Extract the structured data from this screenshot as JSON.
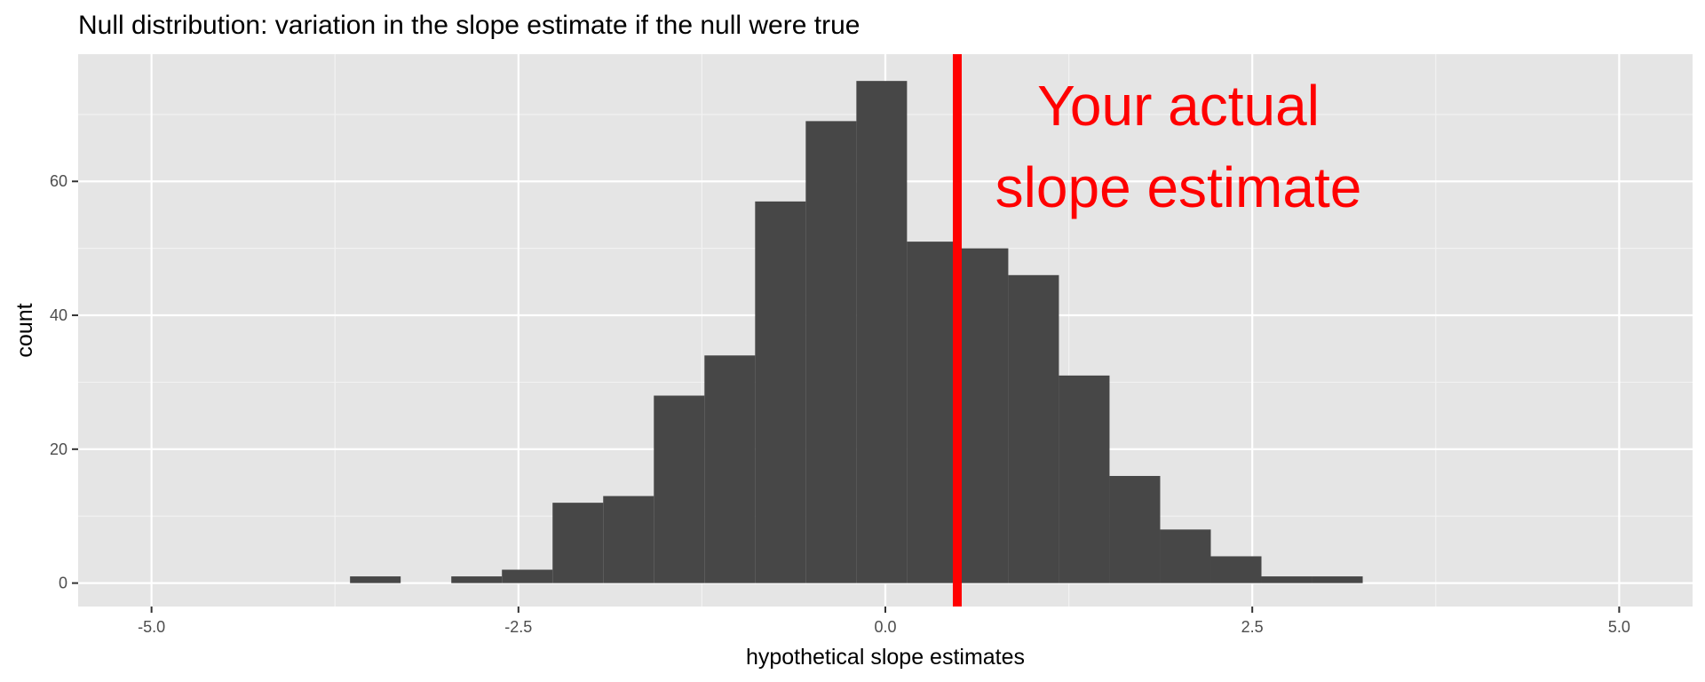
{
  "chart_data": {
    "type": "bar",
    "title": "Null distribution: variation in the slope estimate if the null were true",
    "xlabel": "hypothetical slope estimates",
    "ylabel": "count",
    "xlim": [
      -5.5,
      5.5
    ],
    "ylim": [
      -3.5,
      79
    ],
    "x_ticks": [
      -5.0,
      -2.5,
      0.0,
      2.5,
      5.0
    ],
    "x_tick_labels": [
      "-5.0",
      "-2.5",
      "0.0",
      "2.5",
      "5.0"
    ],
    "y_ticks": [
      0,
      20,
      40,
      60
    ],
    "y_tick_labels": [
      "0",
      "20",
      "40",
      "60"
    ],
    "grid": true,
    "bin_width": 0.345,
    "bins": [
      {
        "x": -3.475,
        "count": 1
      },
      {
        "x": -2.785,
        "count": 1
      },
      {
        "x": -2.44,
        "count": 2
      },
      {
        "x": -2.095,
        "count": 12
      },
      {
        "x": -1.75,
        "count": 13
      },
      {
        "x": -1.405,
        "count": 28
      },
      {
        "x": -1.06,
        "count": 34
      },
      {
        "x": -0.715,
        "count": 57
      },
      {
        "x": -0.37,
        "count": 69
      },
      {
        "x": -0.025,
        "count": 75
      },
      {
        "x": 0.32,
        "count": 51
      },
      {
        "x": 0.665,
        "count": 50
      },
      {
        "x": 1.01,
        "count": 46
      },
      {
        "x": 1.355,
        "count": 31
      },
      {
        "x": 1.7,
        "count": 16
      },
      {
        "x": 2.045,
        "count": 8
      },
      {
        "x": 2.39,
        "count": 4
      },
      {
        "x": 2.735,
        "count": 1
      },
      {
        "x": 3.08,
        "count": 1
      }
    ],
    "bar_color": "#474747",
    "panel_color": "#e5e5e5",
    "reference_line": {
      "x": 0.49,
      "color": "#ff0000"
    },
    "annotation": {
      "lines": [
        "Your actual",
        "slope estimate"
      ],
      "color": "#ff0000"
    }
  }
}
